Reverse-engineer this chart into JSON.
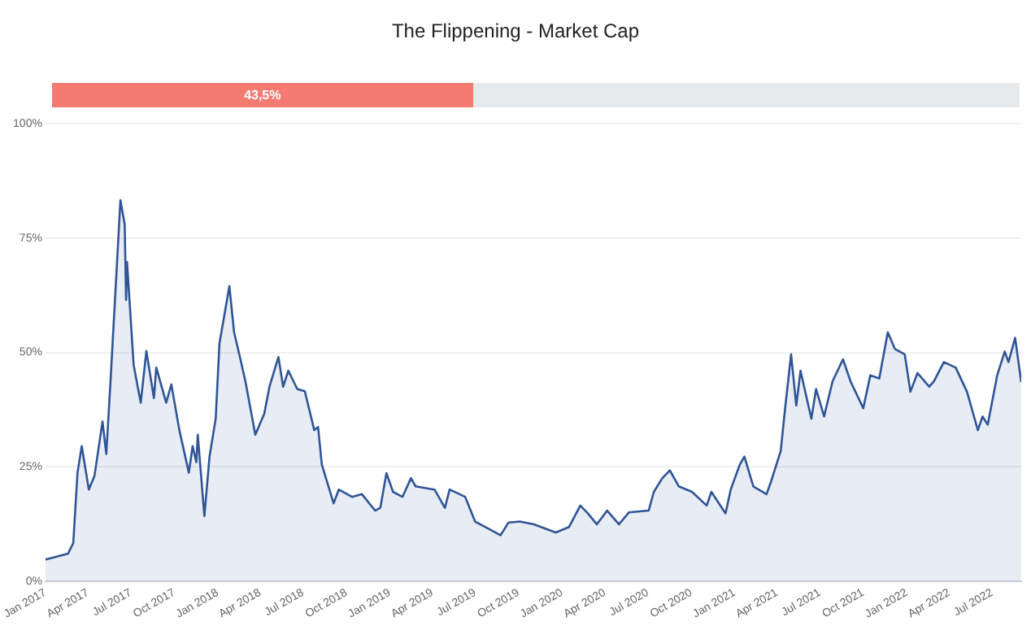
{
  "chart_data": {
    "type": "area",
    "title": "The Flippening - Market Cap",
    "annotations": [
      "43,5%"
    ],
    "x": [
      "2017-01-01",
      "2017-02-18",
      "2017-03-01",
      "2017-03-10",
      "2017-03-19",
      "2017-04-03",
      "2017-04-15",
      "2017-05-02",
      "2017-05-10",
      "2017-05-19",
      "2017-06-09",
      "2017-06-18",
      "2017-06-21",
      "2017-06-23",
      "2017-07-07",
      "2017-07-22",
      "2017-08-03",
      "2017-08-19",
      "2017-08-24",
      "2017-09-14",
      "2017-09-25",
      "2017-10-12",
      "2017-11-01",
      "2017-11-09",
      "2017-11-17",
      "2017-11-20",
      "2017-12-04",
      "2017-12-15",
      "2017-12-28",
      "2018-01-05",
      "2018-01-26",
      "2018-02-05",
      "2018-02-16",
      "2018-03-01",
      "2018-03-22",
      "2018-04-10",
      "2018-04-21",
      "2018-05-10",
      "2018-05-20",
      "2018-05-31",
      "2018-06-19",
      "2018-07-05",
      "2018-07-25",
      "2018-08-02",
      "2018-08-10",
      "2018-09-04",
      "2018-09-15",
      "2018-10-13",
      "2018-11-03",
      "2018-12-01",
      "2018-12-12",
      "2018-12-25",
      "2019-01-08",
      "2019-01-28",
      "2019-02-15",
      "2019-02-25",
      "2019-04-06",
      "2019-04-28",
      "2019-05-08",
      "2019-06-10",
      "2019-07-01",
      "2019-08-01",
      "2019-08-24",
      "2019-09-10",
      "2019-10-04",
      "2019-11-03",
      "2019-12-19",
      "2020-01-16",
      "2020-02-09",
      "2020-02-25",
      "2020-03-15",
      "2020-04-06",
      "2020-05-01",
      "2020-05-22",
      "2020-07-03",
      "2020-07-14",
      "2020-08-01",
      "2020-08-17",
      "2020-09-05",
      "2020-10-03",
      "2020-11-03",
      "2020-11-13",
      "2020-12-13",
      "2020-12-24",
      "2021-01-12",
      "2021-01-22",
      "2021-02-10",
      "2021-03-10",
      "2021-03-20",
      "2021-04-09",
      "2021-04-19",
      "2021-05-01",
      "2021-05-12",
      "2021-05-21",
      "2021-06-13",
      "2021-06-23",
      "2021-07-10",
      "2021-07-28",
      "2021-08-19",
      "2021-09-04",
      "2021-10-01",
      "2021-10-16",
      "2021-11-04",
      "2021-11-22",
      "2021-12-07",
      "2021-12-28",
      "2022-01-09",
      "2022-01-24",
      "2022-02-18",
      "2022-02-28",
      "2022-03-21",
      "2022-04-15",
      "2022-05-09",
      "2022-06-01",
      "2022-06-11",
      "2022-06-22",
      "2022-07-12",
      "2022-07-28",
      "2022-08-05",
      "2022-08-19",
      "2022-09-01"
    ],
    "series": [
      {
        "color": "#2f5597",
        "values": [
          4.7,
          6,
          8.3,
          23.7,
          29.5,
          20,
          23,
          34.9,
          27.8,
          43.7,
          83.3,
          78,
          61.5,
          69.8,
          47.3,
          39,
          50.3,
          40,
          46.7,
          39,
          43,
          33,
          23.7,
          29.5,
          26,
          32,
          14.2,
          27.3,
          35.5,
          52,
          64.5,
          54.4,
          49.6,
          43.7,
          32,
          36.6,
          42.5,
          49,
          42.5,
          46,
          42,
          41.5,
          33,
          33.7,
          25.5,
          17,
          20,
          18.4,
          19,
          15.4,
          16,
          23.6,
          19.5,
          18.4,
          22.5,
          20.7,
          20,
          16,
          20,
          18.4,
          13,
          11.3,
          10,
          12.8,
          13,
          12.4,
          10.6,
          11.8,
          16.5,
          14.8,
          12.4,
          15.4,
          12.4,
          15,
          15.4,
          19.5,
          22.5,
          24.2,
          20.7,
          19.5,
          16.5,
          19.5,
          14.8,
          20,
          25.4,
          27.2,
          20.7,
          19,
          21.9,
          28.4,
          38.4,
          49.6,
          38.4,
          46,
          35.5,
          42,
          36,
          43.7,
          48.5,
          43.7,
          37.8,
          45,
          44.3,
          54.4,
          50.8,
          49.6,
          41.4,
          45.5,
          42.5,
          43.7,
          47.9,
          46.7,
          41.4,
          33,
          36,
          34.2,
          45,
          50.2,
          47.9,
          53.2,
          43.5
        ]
      }
    ],
    "xlim": [
      "2017-01-01",
      "2022-09-01"
    ],
    "xticks": [
      {
        "value": "2017-01",
        "label": "Jan 2017"
      },
      {
        "value": "2017-04",
        "label": "Apr 2017"
      },
      {
        "value": "2017-07",
        "label": "Jul 2017"
      },
      {
        "value": "2017-10",
        "label": "Oct 2017"
      },
      {
        "value": "2018-01",
        "label": "Jan 2018"
      },
      {
        "value": "2018-04",
        "label": "Apr 2018"
      },
      {
        "value": "2018-07",
        "label": "Jul 2018"
      },
      {
        "value": "2018-10",
        "label": "Oct 2018"
      },
      {
        "value": "2019-01",
        "label": "Jan 2019"
      },
      {
        "value": "2019-04",
        "label": "Apr 2019"
      },
      {
        "value": "2019-07",
        "label": "Jul 2019"
      },
      {
        "value": "2019-10",
        "label": "Oct 2019"
      },
      {
        "value": "2020-01",
        "label": "Jan 2020"
      },
      {
        "value": "2020-04",
        "label": "Apr 2020"
      },
      {
        "value": "2020-07",
        "label": "Jul 2020"
      },
      {
        "value": "2020-10",
        "label": "Oct 2020"
      },
      {
        "value": "2021-01",
        "label": "Jan 2021"
      },
      {
        "value": "2021-04",
        "label": "Apr 2021"
      },
      {
        "value": "2021-07",
        "label": "Jul 2021"
      },
      {
        "value": "2021-10",
        "label": "Oct 2021"
      },
      {
        "value": "2022-01",
        "label": "Jan 2022"
      },
      {
        "value": "2022-04",
        "label": "Apr 2022"
      },
      {
        "value": "2022-07",
        "label": "Jul 2022"
      }
    ],
    "ylim": [
      0,
      100
    ],
    "yticks": [
      {
        "value": 0,
        "label": "0%"
      },
      {
        "value": 25,
        "label": "25%"
      },
      {
        "value": 50,
        "label": "50%"
      },
      {
        "value": 75,
        "label": "75%"
      },
      {
        "value": 100,
        "label": "100%"
      }
    ],
    "grid": "y",
    "legend": false,
    "marker": "none",
    "line_style": "solid"
  }
}
